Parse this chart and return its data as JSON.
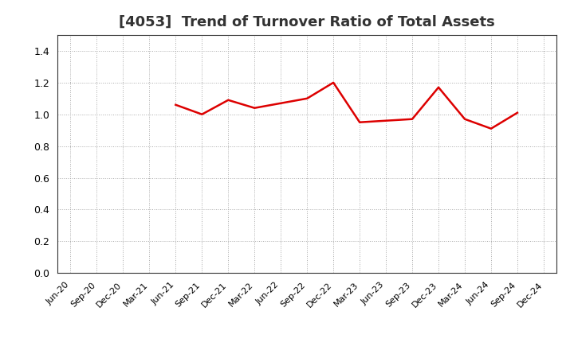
{
  "title": "[4053]  Trend of Turnover Ratio of Total Assets",
  "title_fontsize": 13,
  "title_fontweight": "bold",
  "line_color": "#dd0000",
  "line_width": 1.8,
  "background_color": "#ffffff",
  "grid_color": "#aaaaaa",
  "ylim": [
    0.0,
    1.5
  ],
  "yticks": [
    0.0,
    0.2,
    0.4,
    0.6,
    0.8,
    1.0,
    1.2,
    1.4
  ],
  "x_labels": [
    "Jun-20",
    "Sep-20",
    "Dec-20",
    "Mar-21",
    "Jun-21",
    "Sep-21",
    "Dec-21",
    "Mar-22",
    "Jun-22",
    "Sep-22",
    "Dec-22",
    "Mar-23",
    "Jun-23",
    "Sep-23",
    "Dec-23",
    "Mar-24",
    "Jun-24",
    "Sep-24",
    "Dec-24"
  ],
  "values": [
    null,
    null,
    null,
    null,
    1.06,
    1.0,
    1.09,
    1.04,
    1.07,
    1.1,
    1.2,
    0.95,
    0.96,
    0.97,
    1.17,
    0.97,
    0.91,
    1.01,
    null
  ]
}
